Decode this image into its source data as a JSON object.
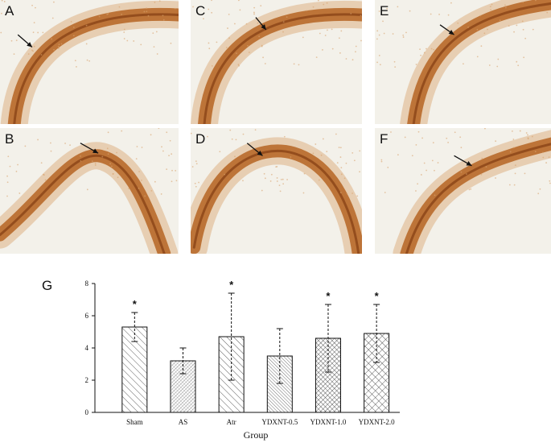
{
  "panels": [
    {
      "label": "A",
      "kind": "arch-left"
    },
    {
      "label": "C",
      "kind": "arch-left"
    },
    {
      "label": "E",
      "kind": "arch-right"
    },
    {
      "label": "B",
      "kind": "peak"
    },
    {
      "label": "D",
      "kind": "arch"
    },
    {
      "label": "F",
      "kind": "arch-right-low"
    }
  ],
  "colors": {
    "stain": "#b86a2a",
    "stain_light": "#d9a36e",
    "background": "#f3f1ea"
  },
  "chart_data": {
    "type": "bar",
    "panel_label": "G",
    "categories": [
      "Sham",
      "AS",
      "Atr",
      "YDXNT-0.5",
      "YDXNT-1.0",
      "YDXNT-2.0"
    ],
    "values": [
      5.3,
      3.2,
      4.7,
      3.5,
      4.6,
      4.9
    ],
    "errors": [
      0.9,
      0.8,
      2.7,
      1.7,
      2.1,
      1.8
    ],
    "significant": [
      true,
      false,
      true,
      false,
      true,
      true
    ],
    "significance_marker": "*",
    "ylim": [
      0,
      8
    ],
    "yticks": [
      0,
      2,
      4,
      6,
      8
    ],
    "xlabel": "Group",
    "ylabel": "",
    "patterns": [
      "diag-sparse",
      "cross-dense",
      "diag-sparse",
      "diag-dense",
      "cross-mesh",
      "cross-grid"
    ]
  }
}
